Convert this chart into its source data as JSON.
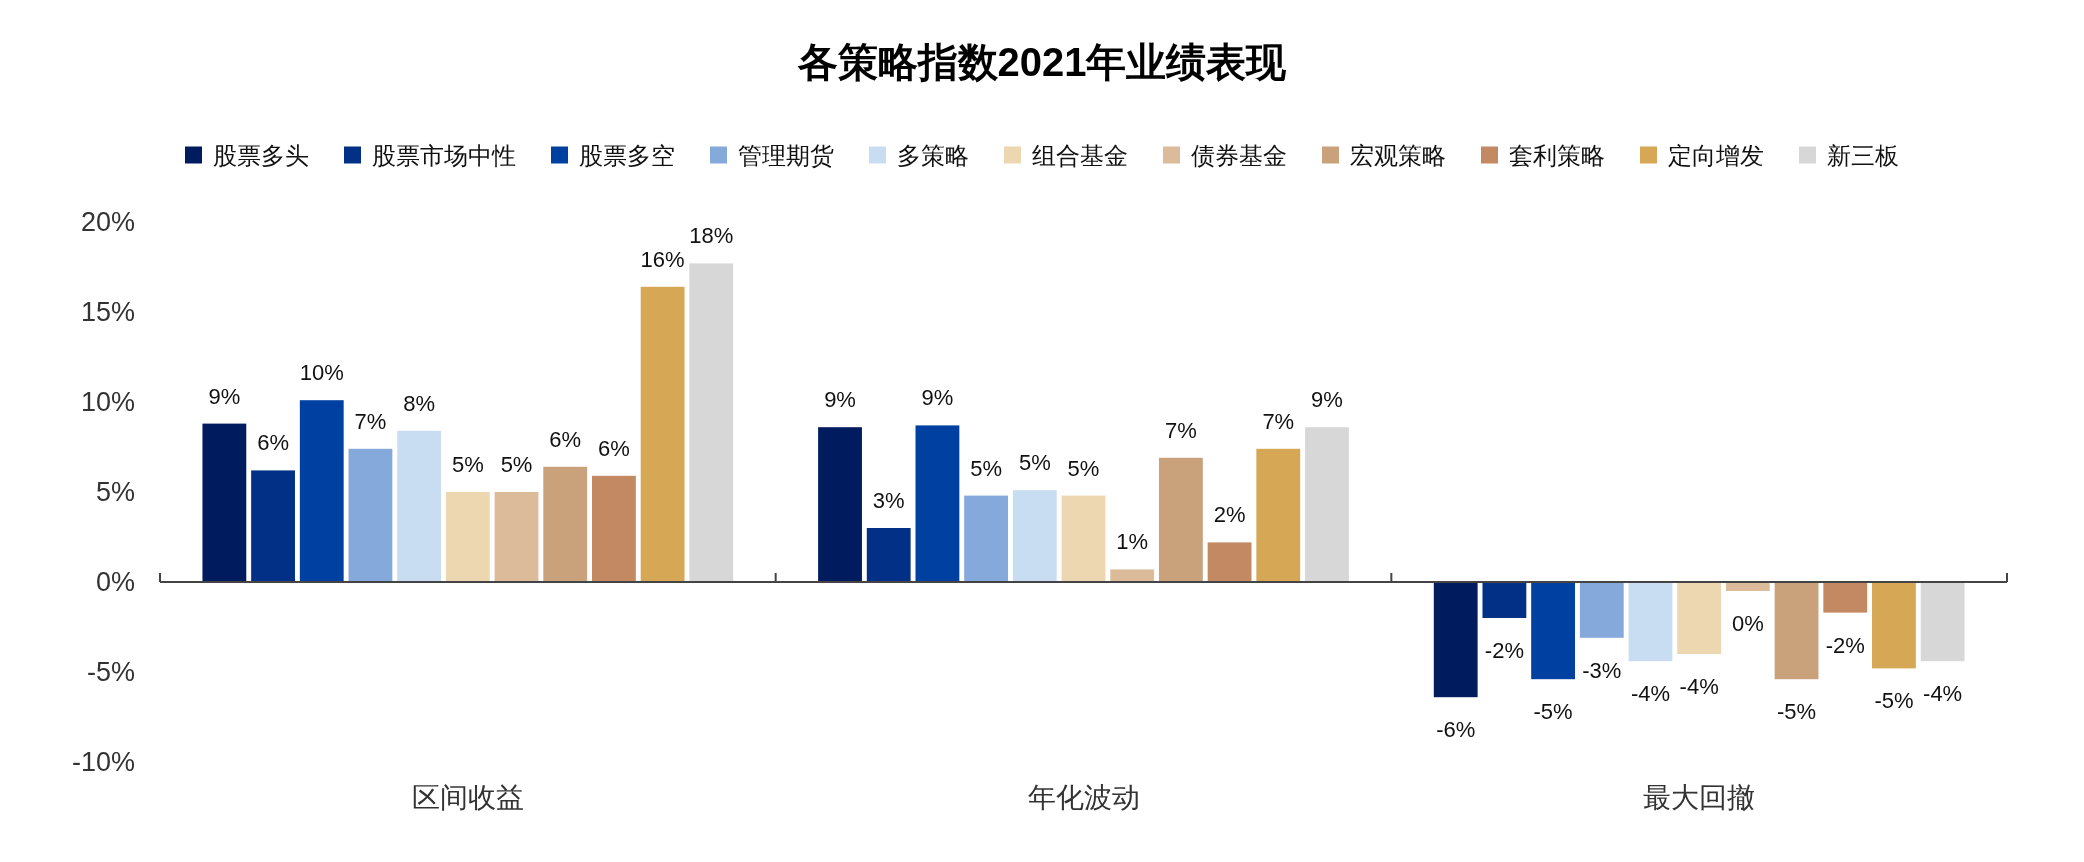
{
  "chart_data": {
    "type": "bar",
    "title": "各策略指数2021年业绩表现",
    "categories": [
      "区间收益",
      "年化波动",
      "最大回撤"
    ],
    "series": [
      {
        "name": "股票多头",
        "color": "#001c5f",
        "values": [
          8.8,
          8.6,
          -6.4
        ],
        "value_labels": [
          "9%",
          "9%",
          "-6%"
        ]
      },
      {
        "name": "股票市场中性",
        "color": "#033087",
        "values": [
          6.2,
          3.0,
          -2.0
        ],
        "value_labels": [
          "6%",
          "3%",
          "-2%"
        ]
      },
      {
        "name": "股票多空",
        "color": "#0040a0",
        "values": [
          10.1,
          8.7,
          -5.4
        ],
        "value_labels": [
          "10%",
          "9%",
          "-5%"
        ]
      },
      {
        "name": "管理期货",
        "color": "#86a9db",
        "values": [
          7.4,
          4.8,
          -3.1
        ],
        "value_labels": [
          "7%",
          "5%",
          "-3%"
        ]
      },
      {
        "name": "多策略",
        "color": "#c9ddf2",
        "values": [
          8.4,
          5.1,
          -4.4
        ],
        "value_labels": [
          "8%",
          "5%",
          "-4%"
        ]
      },
      {
        "name": "组合基金",
        "color": "#edd7b0",
        "values": [
          5.0,
          4.8,
          -4.0
        ],
        "value_labels": [
          "5%",
          "5%",
          "-4%"
        ]
      },
      {
        "name": "债券基金",
        "color": "#dcbb9a",
        "values": [
          5.0,
          0.7,
          -0.5
        ],
        "value_labels": [
          "5%",
          "1%",
          "0%"
        ]
      },
      {
        "name": "宏观策略",
        "color": "#c9a17b",
        "values": [
          6.4,
          6.9,
          -5.4
        ],
        "value_labels": [
          "6%",
          "7%",
          "-5%"
        ]
      },
      {
        "name": "套利策略",
        "color": "#c38962",
        "values": [
          5.9,
          2.2,
          -1.7
        ],
        "value_labels": [
          "6%",
          "2%",
          "-2%"
        ]
      },
      {
        "name": "定向增发",
        "color": "#d6a856",
        "values": [
          16.4,
          7.4,
          -4.8
        ],
        "value_labels": [
          "16%",
          "7%",
          "-5%"
        ]
      },
      {
        "name": "新三板",
        "color": "#d7d7d7",
        "values": [
          17.7,
          8.6,
          -4.4
        ],
        "value_labels": [
          "18%",
          "9%",
          "-4%"
        ]
      }
    ],
    "ylim": [
      -10,
      20
    ],
    "yticks": [
      {
        "value": -10,
        "label": "-10%"
      },
      {
        "value": -5,
        "label": "-5%"
      },
      {
        "value": 0,
        "label": "0%"
      },
      {
        "value": 5,
        "label": "5%"
      },
      {
        "value": 10,
        "label": "10%"
      },
      {
        "value": 15,
        "label": "15%"
      },
      {
        "value": 20,
        "label": "20%"
      }
    ],
    "legend": "top"
  }
}
